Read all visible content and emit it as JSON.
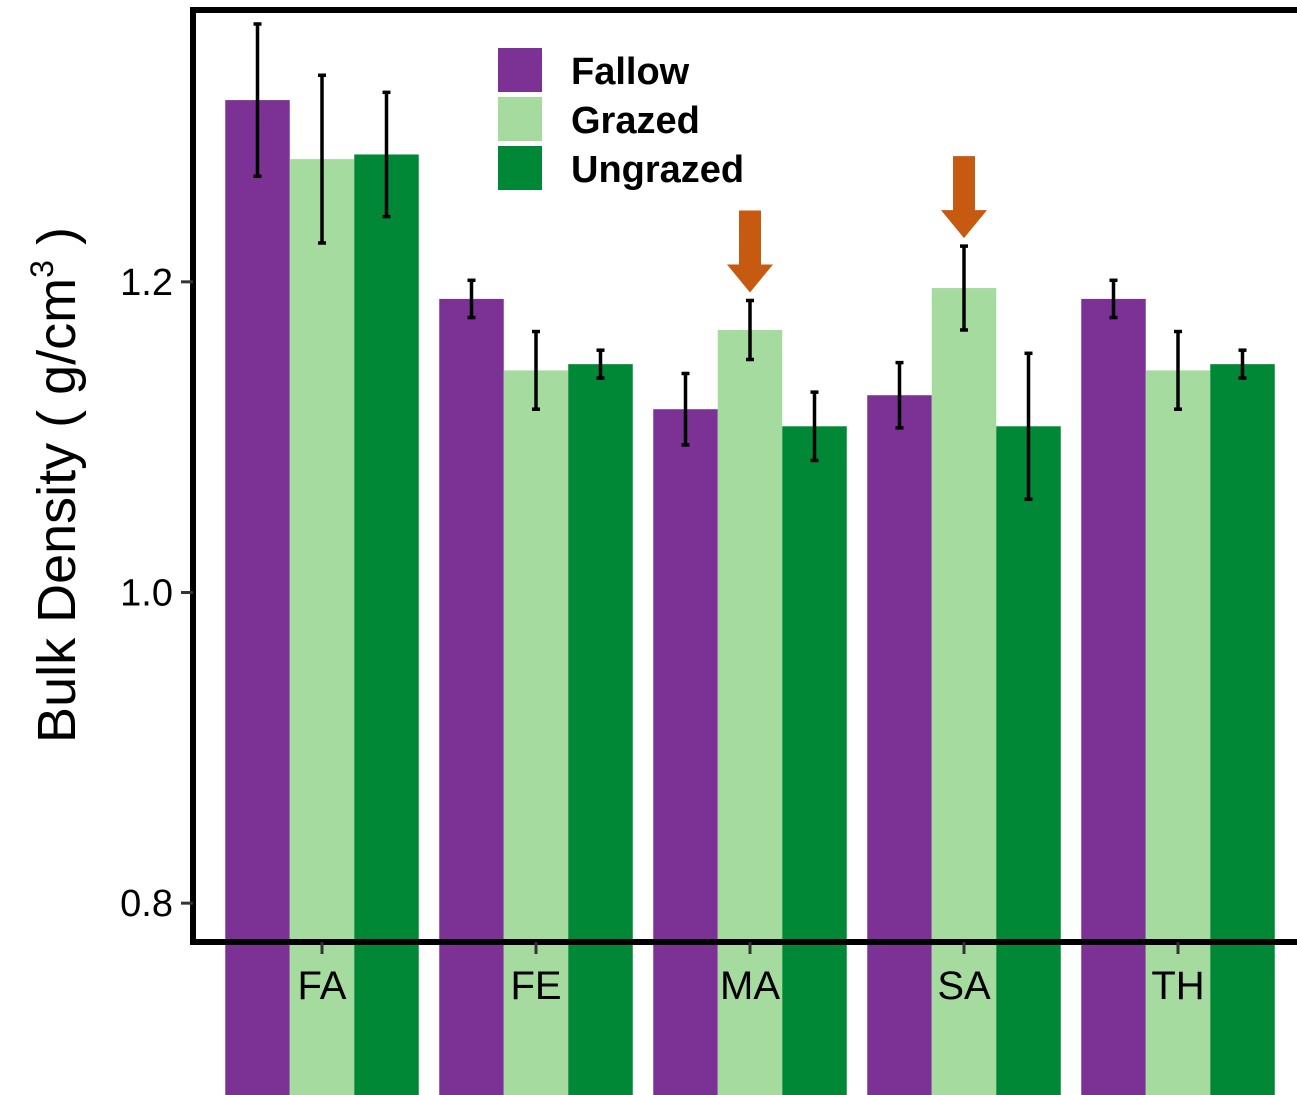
{
  "chart_data": {
    "type": "bar",
    "xlabel": "",
    "ylabel": "Bulk  Density ( g/cm",
    "ylabel_superscript": "3",
    "ylabel_close": " )",
    "categories": [
      "FA",
      "FE",
      "MA",
      "SA",
      "TH"
    ],
    "series": [
      {
        "name": "Fallow",
        "color": "#7b3294",
        "values": [
          1.317,
          1.189,
          1.118,
          1.127,
          1.189
        ],
        "errors": [
          0.049,
          0.012,
          0.023,
          0.021,
          0.012
        ]
      },
      {
        "name": "Grazed",
        "color": "#a6dba0",
        "values": [
          1.279,
          1.143,
          1.169,
          1.196,
          1.143
        ],
        "errors": [
          0.054,
          0.025,
          0.019,
          0.027,
          0.025
        ]
      },
      {
        "name": "Ungrazed",
        "color": "#008837",
        "values": [
          1.282,
          1.147,
          1.107,
          1.107,
          1.147
        ],
        "errors": [
          0.04,
          0.009,
          0.022,
          0.047,
          0.009
        ]
      }
    ],
    "ylim": [
      0.775,
      1.375
    ],
    "yticks": [
      0.8,
      1.0,
      1.2
    ],
    "ytick_labels": [
      "0.8",
      "1.0",
      "1.2"
    ],
    "grid": false,
    "legend_position": "top-left",
    "annotations": [
      {
        "type": "arrow",
        "category": "MA",
        "series": "Grazed",
        "color": "#c65a11",
        "icon": "down-arrow-icon"
      },
      {
        "type": "arrow",
        "category": "SA",
        "series": "Grazed",
        "color": "#c65a11",
        "icon": "down-arrow-icon"
      }
    ]
  }
}
